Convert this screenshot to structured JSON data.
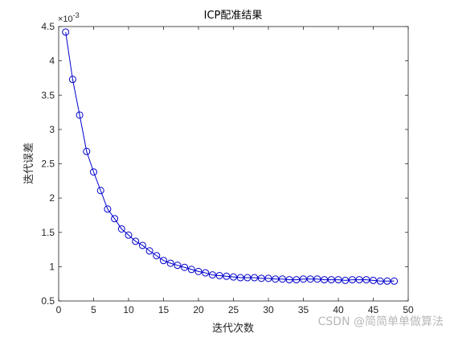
{
  "chart_data": {
    "type": "line",
    "title": "ICP配准结果",
    "xlabel": "迭代次数",
    "ylabel": "迭代误差",
    "y_exponent_label": "×10",
    "y_exponent_power": "-3",
    "xlim": [
      0,
      50
    ],
    "ylim": [
      0.5,
      4.5
    ],
    "x_ticks": [
      0,
      5,
      10,
      15,
      20,
      25,
      30,
      35,
      40,
      45,
      50
    ],
    "x_tick_labels": [
      "0",
      "5",
      "10",
      "15",
      "20",
      "25",
      "30",
      "35",
      "40",
      "45",
      "50"
    ],
    "y_ticks": [
      0.5,
      1,
      1.5,
      2,
      2.5,
      3,
      3.5,
      4,
      4.5
    ],
    "y_tick_labels": [
      "0.5",
      "1",
      "1.5",
      "2",
      "2.5",
      "3",
      "3.5",
      "4",
      "4.5"
    ],
    "grid": true,
    "line_color": "#0000cc",
    "marker": "circle",
    "series": [
      {
        "x": [
          1,
          2,
          3,
          4,
          5,
          6,
          7,
          8,
          9,
          10,
          11,
          12,
          13,
          14,
          15,
          16,
          17,
          18,
          19,
          20,
          21,
          22,
          23,
          24,
          25,
          26,
          27,
          28,
          29,
          30,
          31,
          32,
          33,
          34,
          35,
          36,
          37,
          38,
          39,
          40,
          41,
          42,
          43,
          44,
          45,
          46,
          47,
          48
        ],
        "values": [
          4.42,
          3.73,
          3.21,
          2.68,
          2.38,
          2.11,
          1.84,
          1.7,
          1.55,
          1.46,
          1.37,
          1.31,
          1.23,
          1.16,
          1.09,
          1.05,
          1.02,
          0.99,
          0.96,
          0.93,
          0.91,
          0.88,
          0.87,
          0.86,
          0.85,
          0.84,
          0.84,
          0.84,
          0.83,
          0.83,
          0.82,
          0.82,
          0.81,
          0.81,
          0.82,
          0.82,
          0.82,
          0.81,
          0.81,
          0.81,
          0.8,
          0.81,
          0.81,
          0.81,
          0.8,
          0.79,
          0.79,
          0.79
        ]
      }
    ]
  },
  "watermark": "CSDN @简简单单做算法"
}
